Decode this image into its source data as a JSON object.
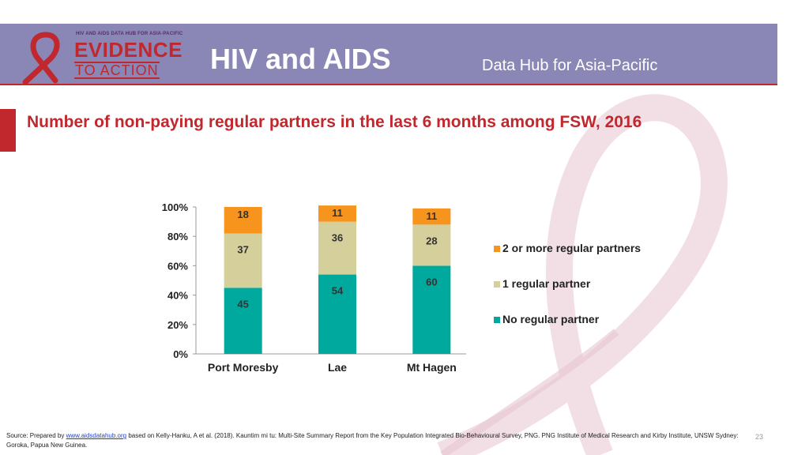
{
  "header": {
    "logo_super": "HIV AND AIDS DATA HUB FOR ASIA-PACIFIC",
    "logo_word1": "EVIDENCE",
    "logo_word2": "TO ACTION",
    "title": "HIV and AIDS",
    "subtitle": "Data Hub for Asia-Pacific"
  },
  "slide": {
    "title": "Number of non-paying regular partners in the last 6 months among FSW, 2016",
    "page_number": "23"
  },
  "colors": {
    "no_partner": "#00a99d",
    "one_partner": "#d4cf9b",
    "two_plus": "#f7941d"
  },
  "chart_data": {
    "type": "bar",
    "stacked": true,
    "title": "",
    "xlabel": "",
    "ylabel": "",
    "ylim": [
      0,
      100
    ],
    "yticks": [
      "0%",
      "20%",
      "40%",
      "60%",
      "80%",
      "100%"
    ],
    "categories": [
      "Port Moresby",
      "Lae",
      "Mt Hagen"
    ],
    "series": [
      {
        "name": "No regular partner",
        "values": [
          45,
          54,
          60
        ]
      },
      {
        "name": "1 regular partner",
        "values": [
          37,
          36,
          28
        ]
      },
      {
        "name": "2 or more regular partners",
        "values": [
          18,
          11,
          11
        ]
      }
    ],
    "legend_position": "right"
  },
  "source": {
    "prefix": "Source: Prepared by ",
    "link": "www.aidsdatahub.org",
    "text": " based on Kelly-Hanku, A et al. (2018). Kauntim mi tu: Multi-Site Summary Report from the Key Population Integrated Bio-Behavioural Survey, PNG. PNG Institute of Medical Research and Kirby Institute, UNSW Sydney: Goroka, Papua New Guinea."
  }
}
